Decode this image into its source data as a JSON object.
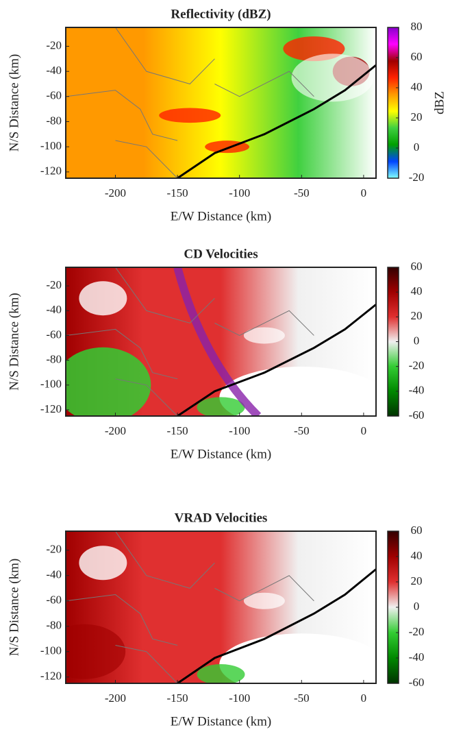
{
  "chart_data": [
    {
      "type": "radar",
      "title": "Reflectivity (dBZ)",
      "xlabel": "E/W Distance (km)",
      "ylabel": "N/S Distance (km)",
      "xlim": [
        -240,
        10
      ],
      "xticks": [
        -200,
        -150,
        -100,
        -50,
        0
      ],
      "ylim": [
        -125,
        -5
      ],
      "yticks": [
        -120,
        -100,
        -80,
        -60,
        -40,
        -20
      ],
      "colorbar": {
        "label": "dBZ",
        "lim": [
          -20,
          80
        ],
        "ticks": [
          -20,
          0,
          20,
          40,
          60,
          80
        ],
        "colormap": [
          "#80ffff",
          "#0044ff",
          "#00a000",
          "#40d040",
          "#ffff00",
          "#ff9900",
          "#ff2200",
          "#a00000",
          "#ff00ff",
          "#8800cc"
        ]
      }
    },
    {
      "type": "radar",
      "title": "CD Velocities",
      "xlabel": "E/W Distance (km)",
      "ylabel": "N/S Distance (km)",
      "xlim": [
        -240,
        10
      ],
      "xticks": [
        -200,
        -150,
        -100,
        -50,
        0
      ],
      "ylim": [
        -125,
        -5
      ],
      "yticks": [
        -120,
        -100,
        -80,
        -60,
        -40,
        -20
      ],
      "colorbar": {
        "lim": [
          -60,
          60
        ],
        "ticks": [
          -60,
          -40,
          -20,
          0,
          20,
          40,
          60
        ],
        "colormap": [
          "#003300",
          "#008800",
          "#33cc33",
          "#f0f0f0",
          "#e03030",
          "#a00000",
          "#330000"
        ]
      }
    },
    {
      "type": "radar",
      "title": "VRAD Velocities",
      "xlabel": "E/W Distance (km)",
      "ylabel": "N/S Distance (km)",
      "xlim": [
        -240,
        10
      ],
      "xticks": [
        -200,
        -150,
        -100,
        -50,
        0
      ],
      "ylim": [
        -125,
        -5
      ],
      "yticks": [
        -120,
        -100,
        -80,
        -60,
        -40,
        -20
      ],
      "colorbar": {
        "lim": [
          -60,
          60
        ],
        "ticks": [
          -60,
          -40,
          -20,
          0,
          20,
          40,
          60
        ],
        "colormap": [
          "#003300",
          "#008800",
          "#33cc33",
          "#f0f0f0",
          "#e03030",
          "#a00000",
          "#330000"
        ]
      }
    }
  ]
}
